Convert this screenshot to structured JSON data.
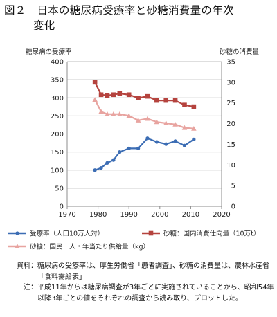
{
  "title_line1": "図２　日本の糖尿病受療率と砂糖消費量の年次",
  "title_line2": "変化",
  "notes": [
    {
      "label": "資料",
      "text": "糖尿病の受療率は、厚生労働省「患者調査」、砂糖の消費量は、農林水産省「食料需給表」"
    },
    {
      "label": "注",
      "text": "平成11年からは糖尿病調査が3年ごとに実施されていることから、昭和54年以降3年ごとの値をそれぞれの調査から読み取り、プロットした。"
    }
  ],
  "chart_data": {
    "type": "line",
    "title": "",
    "xlabel": "",
    "ylabel": "糖尿病の受療率",
    "y2label": "砂糖の消費量",
    "xlim": [
      1970,
      2020
    ],
    "ylim": [
      0,
      400
    ],
    "y2lim": [
      0,
      35
    ],
    "x_ticks": [
      1970,
      1980,
      1990,
      2000,
      2010,
      2020
    ],
    "y_ticks": [
      0,
      50,
      100,
      150,
      200,
      250,
      300,
      350,
      400
    ],
    "y2_ticks": [
      0,
      5,
      10,
      15,
      20,
      25,
      30,
      35
    ],
    "grid": true,
    "legend_position": "bottom",
    "x": [
      1979,
      1981,
      1983,
      1985,
      1987,
      1990,
      1993,
      1996,
      1999,
      2002,
      2005,
      2008,
      2011
    ],
    "series": [
      {
        "name": "受療率（人口10万人対）",
        "axis": "left",
        "marker": "diamond",
        "color": "#3c6db4",
        "values": [
          100,
          106,
          120,
          128,
          150,
          160,
          160,
          188,
          178,
          172,
          180,
          168,
          185
        ]
      },
      {
        "name": "砂糖：国内消費仕向量（10万t）",
        "axis": "right",
        "marker": "square",
        "color": "#b5433e",
        "values": [
          30.0,
          27.0,
          26.8,
          27.0,
          27.3,
          27.0,
          26.2,
          26.6,
          25.6,
          25.6,
          25.6,
          24.5,
          24.1
        ]
      },
      {
        "name": "砂糖：国民一人・年当たり供給量（kg）",
        "axis": "right",
        "marker": "triangle",
        "color": "#e8a4a0",
        "values": [
          25.8,
          22.9,
          22.3,
          22.3,
          22.3,
          21.9,
          20.8,
          21.2,
          20.4,
          20.1,
          19.8,
          19.0,
          18.8
        ]
      }
    ]
  }
}
